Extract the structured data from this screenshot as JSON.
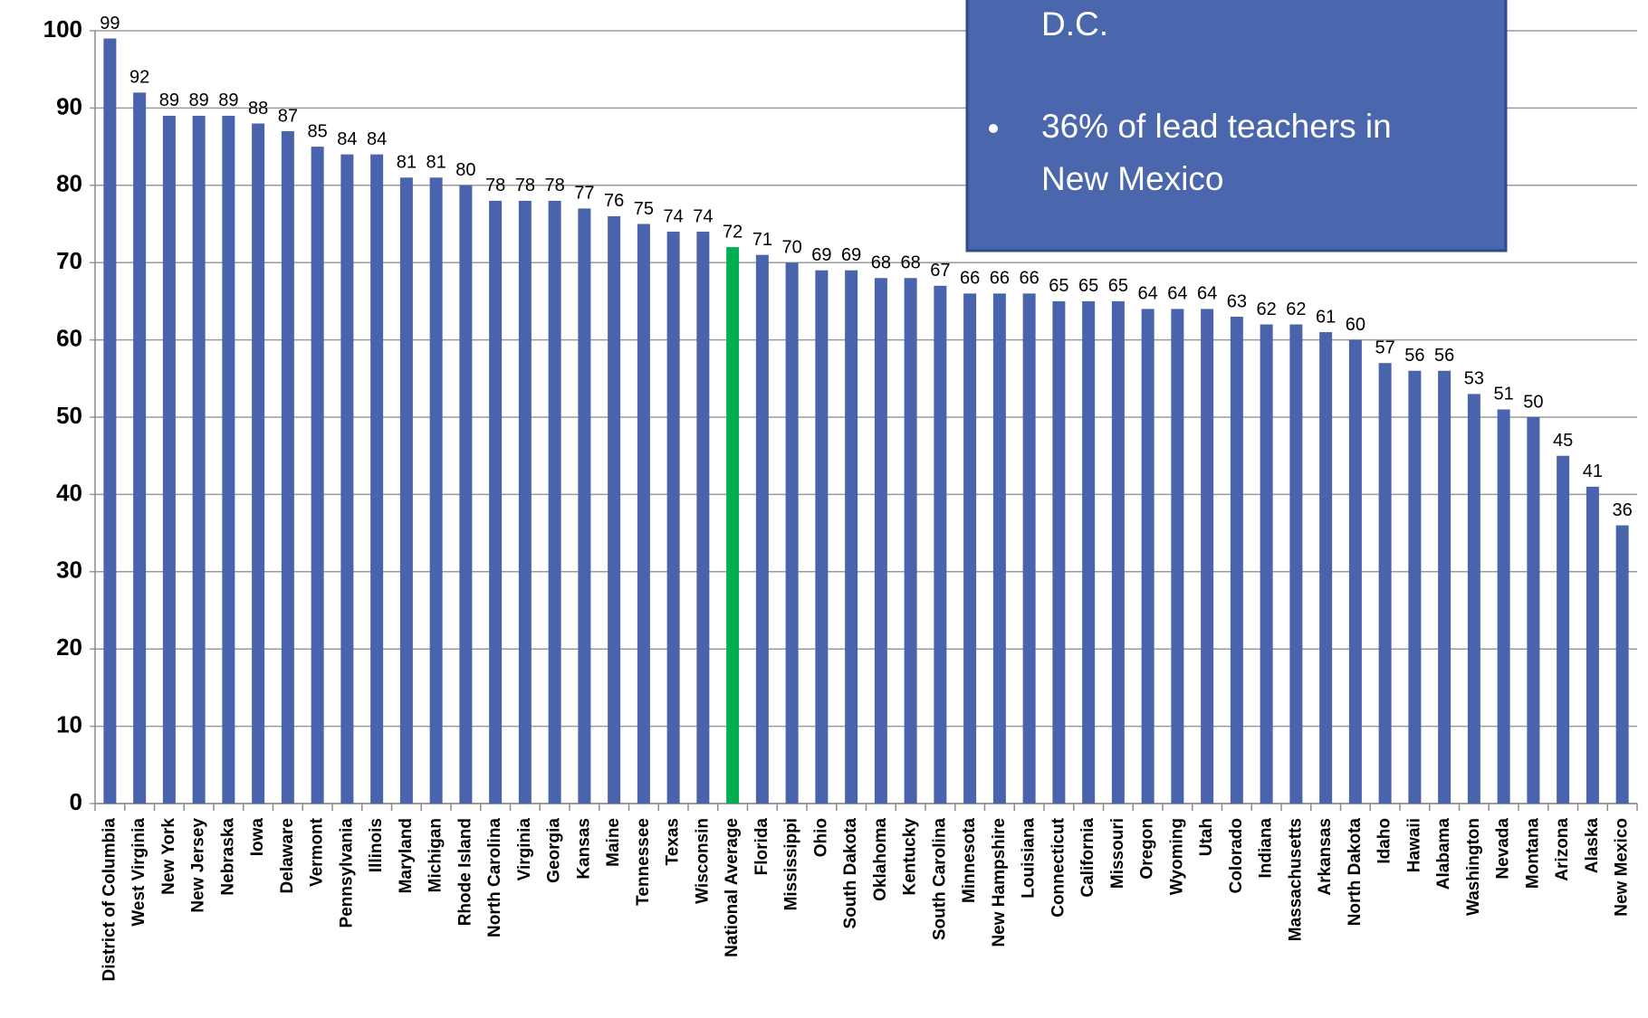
{
  "chart_data": {
    "type": "bar",
    "categories": [
      "District of Columbia",
      "West Virginia",
      "New York",
      "New Jersey",
      "Nebraska",
      "Iowa",
      "Delaware",
      "Vermont",
      "Pennsylvania",
      "Illinois",
      "Maryland",
      "Michigan",
      "Rhode Island",
      "North Carolina",
      "Virginia",
      "Georgia",
      "Kansas",
      "Maine",
      "Tennessee",
      "Texas",
      "Wisconsin",
      "National Average",
      "Florida",
      "Mississippi",
      "Ohio",
      "South Dakota",
      "Oklahoma",
      "Kentucky",
      "South Carolina",
      "Minnesota",
      "New Hampshire",
      "Louisiana",
      "Connecticut",
      "California",
      "Missouri",
      "Oregon",
      "Wyoming",
      "Utah",
      "Colorado",
      "Indiana",
      "Massachusetts",
      "Arkansas",
      "North Dakota",
      "Idaho",
      "Hawaii",
      "Alabama",
      "Washington",
      "Nevada",
      "Montana",
      "Arizona",
      "Alaska",
      "New Mexico"
    ],
    "values": [
      99,
      92,
      89,
      89,
      89,
      88,
      87,
      85,
      84,
      84,
      81,
      81,
      80,
      78,
      78,
      78,
      77,
      76,
      75,
      74,
      74,
      72,
      71,
      70,
      69,
      69,
      68,
      68,
      67,
      66,
      66,
      66,
      65,
      65,
      65,
      64,
      64,
      64,
      63,
      62,
      62,
      61,
      60,
      57,
      56,
      56,
      53,
      51,
      50,
      45,
      41,
      36
    ],
    "color": "#4a63ad",
    "highlight": {
      "index": 21,
      "color": "#00b050"
    },
    "ylim": [
      0,
      100
    ],
    "yticks": [
      0,
      10,
      20,
      30,
      40,
      50,
      60,
      70,
      80,
      90,
      100
    ],
    "grid": true,
    "annotation": {
      "lines": [
        "D.C."
      ],
      "bullets": [
        [
          "36% of lead teachers in",
          "New Mexico"
        ]
      ]
    }
  }
}
